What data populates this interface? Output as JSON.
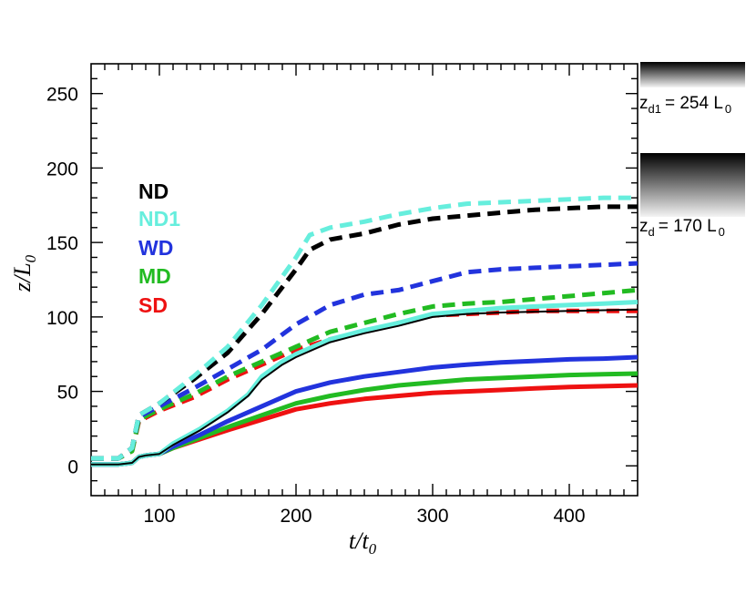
{
  "chart_data": {
    "type": "line",
    "title": "",
    "xlabel": "t/t",
    "xlabel_sub": "0",
    "ylabel": "z/L",
    "ylabel_sub": "0",
    "xlim": [
      50,
      450
    ],
    "ylim": [
      -20,
      270
    ],
    "xticks": [
      100,
      200,
      300,
      400
    ],
    "yticks": [
      0,
      50,
      100,
      150,
      200,
      250
    ],
    "xtick_labels": [
      "100",
      "200",
      "300",
      "400"
    ],
    "ytick_labels": [
      "0",
      "50",
      "100",
      "150",
      "200",
      "250"
    ],
    "grid": false,
    "legend_position": "upper-left",
    "legend": [
      {
        "label": "ND",
        "color": "#000000"
      },
      {
        "label": "ND1",
        "color": "#66eedd"
      },
      {
        "label": "WD",
        "color": "#2233dd"
      },
      {
        "label": "MD",
        "color": "#22bb22"
      },
      {
        "label": "SD",
        "color": "#ee1111"
      }
    ],
    "series": [
      {
        "name": "SD solid",
        "color": "#ee1111",
        "style": "solid",
        "x": [
          50,
          70,
          80,
          85,
          90,
          100,
          110,
          130,
          150,
          175,
          200,
          225,
          250,
          275,
          300,
          325,
          350,
          375,
          400,
          425,
          450
        ],
        "y": [
          1,
          1,
          2,
          6,
          7,
          8,
          12,
          18,
          24,
          31,
          38,
          42,
          45,
          47,
          49,
          50,
          51,
          52,
          53,
          53.5,
          54
        ]
      },
      {
        "name": "MD solid",
        "color": "#22bb22",
        "style": "solid",
        "x": [
          50,
          70,
          80,
          85,
          90,
          100,
          110,
          130,
          150,
          175,
          200,
          225,
          250,
          275,
          300,
          325,
          350,
          375,
          400,
          425,
          450
        ],
        "y": [
          1,
          1,
          2,
          6,
          7,
          8,
          12,
          19,
          26,
          34,
          42,
          47,
          51,
          54,
          56,
          58,
          59,
          60,
          61,
          61.5,
          62
        ]
      },
      {
        "name": "WD solid",
        "color": "#2233dd",
        "style": "solid",
        "x": [
          50,
          70,
          80,
          85,
          90,
          100,
          110,
          130,
          150,
          175,
          200,
          225,
          250,
          275,
          300,
          325,
          350,
          375,
          400,
          425,
          450
        ],
        "y": [
          1,
          1,
          2,
          6,
          7,
          8,
          13,
          21,
          30,
          40,
          50,
          56,
          60,
          63,
          66,
          68,
          69.5,
          70.5,
          71.5,
          72,
          73
        ]
      },
      {
        "name": "ND1 solid",
        "color": "#66eedd",
        "style": "solid",
        "x": [
          50,
          70,
          80,
          85,
          90,
          100,
          110,
          130,
          150,
          165,
          175,
          190,
          200,
          225,
          250,
          275,
          300,
          325,
          350,
          375,
          400,
          425,
          450
        ],
        "y": [
          1,
          1,
          2,
          6,
          7,
          8,
          15,
          25,
          37,
          48,
          60,
          70,
          75,
          85,
          91,
          96,
          102,
          104,
          106,
          107,
          108,
          109,
          110
        ]
      },
      {
        "name": "ND solid",
        "color": "#000000",
        "style": "solid",
        "x": [
          50,
          70,
          80,
          85,
          90,
          100,
          110,
          130,
          150,
          165,
          175,
          190,
          200,
          225,
          250,
          275,
          300,
          325,
          350,
          375,
          400,
          425,
          450
        ],
        "y": [
          1,
          1,
          2,
          6,
          7,
          8,
          14,
          24,
          36,
          47,
          58,
          68,
          73,
          83,
          89,
          94,
          100,
          102,
          103,
          103.5,
          104,
          104.5,
          105
        ]
      },
      {
        "name": "SD dashed",
        "color": "#ee1111",
        "style": "dashed",
        "x": [
          50,
          70,
          80,
          85,
          100,
          125,
          150,
          175,
          200,
          225,
          250,
          275,
          300,
          325,
          350,
          375,
          400,
          425,
          450
        ],
        "y": [
          5,
          5,
          10,
          30,
          37,
          46,
          58,
          68,
          78,
          85,
          90,
          96,
          101,
          102,
          103,
          104,
          104,
          104,
          104
        ]
      },
      {
        "name": "MD dashed",
        "color": "#22bb22",
        "style": "dashed",
        "x": [
          50,
          70,
          80,
          85,
          100,
          125,
          150,
          175,
          200,
          225,
          250,
          275,
          300,
          325,
          350,
          375,
          400,
          425,
          450
        ],
        "y": [
          5,
          5,
          10,
          31,
          38,
          48,
          60,
          70,
          80,
          90,
          96,
          102,
          107,
          109,
          110,
          112,
          114,
          116,
          118
        ]
      },
      {
        "name": "WD dashed",
        "color": "#2233dd",
        "style": "dashed",
        "x": [
          50,
          70,
          80,
          85,
          100,
          125,
          150,
          175,
          200,
          225,
          250,
          275,
          300,
          325,
          350,
          375,
          400,
          425,
          450
        ],
        "y": [
          5,
          5,
          12,
          33,
          40,
          52,
          65,
          78,
          95,
          108,
          115,
          118,
          124,
          130,
          132,
          133,
          134,
          135,
          136
        ]
      },
      {
        "name": "ND dashed",
        "color": "#000000",
        "style": "dashed",
        "x": [
          50,
          70,
          80,
          85,
          100,
          125,
          150,
          175,
          200,
          210,
          225,
          250,
          275,
          300,
          325,
          350,
          375,
          400,
          425,
          450
        ],
        "y": [
          5,
          5,
          12,
          34,
          42,
          58,
          76,
          102,
          132,
          145,
          152,
          156,
          162,
          166,
          168,
          170,
          172,
          173,
          174,
          174
        ]
      },
      {
        "name": "ND1 dashed",
        "color": "#66eedd",
        "style": "dashed",
        "x": [
          50,
          70,
          80,
          85,
          100,
          125,
          150,
          175,
          200,
          210,
          225,
          250,
          275,
          300,
          325,
          350,
          375,
          400,
          425,
          450
        ],
        "y": [
          5,
          5,
          12,
          34,
          42,
          60,
          80,
          108,
          140,
          155,
          160,
          164,
          169,
          173,
          176,
          177,
          178,
          179,
          180,
          180
        ]
      }
    ],
    "annotations": [
      {
        "label": "z",
        "sub": "d1",
        "value": "= 254 L",
        "value_sub": "0",
        "level": 254
      },
      {
        "label": "z",
        "sub": "d",
        "value": "= 170 L",
        "value_sub": "0",
        "level": 170
      }
    ]
  }
}
